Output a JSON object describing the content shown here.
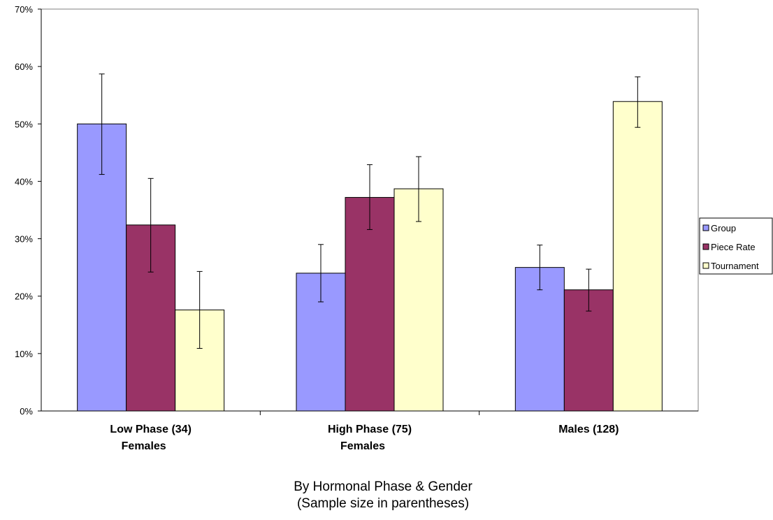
{
  "chart_data": {
    "type": "bar",
    "categories": [
      [
        "Low Phase (34)",
        "Females"
      ],
      [
        "High Phase (75)",
        "Females"
      ],
      [
        "Males (128)"
      ]
    ],
    "series": [
      {
        "name": "Group",
        "color": "#9999ff",
        "values": [
          50,
          24,
          25
        ],
        "err_low": [
          41.2,
          19,
          21.1
        ],
        "err_high": [
          58.7,
          29,
          28.9
        ]
      },
      {
        "name": "Piece Rate",
        "color": "#993366",
        "values": [
          32.4,
          37.2,
          21.1
        ],
        "err_low": [
          24.2,
          31.6,
          17.4
        ],
        "err_high": [
          40.5,
          42.9,
          24.7
        ]
      },
      {
        "name": "Tournament",
        "color": "#ffffcc",
        "values": [
          17.6,
          38.7,
          53.9
        ],
        "err_low": [
          10.9,
          33,
          49.4
        ],
        "err_high": [
          24.3,
          44.3,
          58.2
        ]
      }
    ],
    "yticks": [
      "0%",
      "10%",
      "20%",
      "30%",
      "40%",
      "50%",
      "60%",
      "70%"
    ],
    "ylim": [
      0,
      70
    ],
    "xlabel": [
      "By Hormonal Phase & Gender",
      "(Sample size in parentheses)"
    ],
    "legend_position": "right",
    "grid": false
  }
}
